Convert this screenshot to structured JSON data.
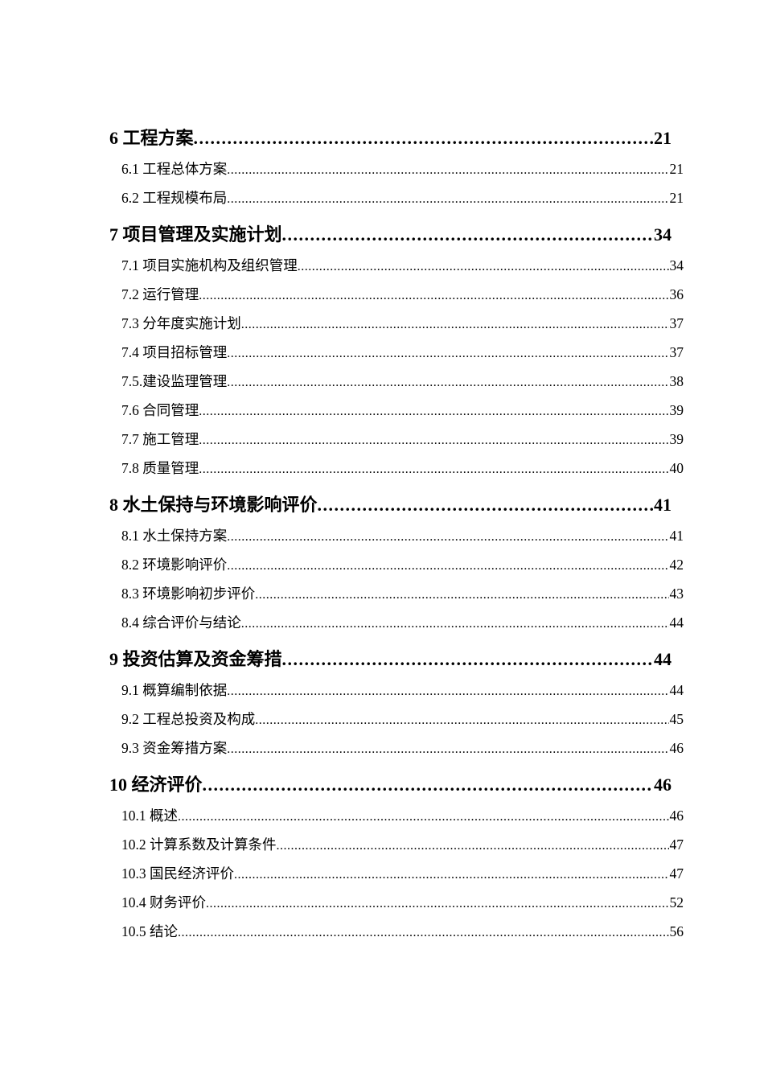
{
  "page": {
    "background_color": "#ffffff",
    "text_color": "#000000",
    "leader_char": "."
  },
  "toc": {
    "entries": [
      {
        "level": 1,
        "label": "6 工程方案",
        "page": "21"
      },
      {
        "level": 2,
        "label": "6.1 工程总体方案",
        "page": "21"
      },
      {
        "level": 2,
        "label": "6.2 工程规模布局",
        "page": "21"
      },
      {
        "level": 1,
        "label": "7 项目管理及实施计划",
        "page": "34"
      },
      {
        "level": 2,
        "label": "7.1 项目实施机构及组织管理",
        "page": "34"
      },
      {
        "level": 2,
        "label": "7.2 运行管理",
        "page": "36"
      },
      {
        "level": 2,
        "label": "7.3 分年度实施计划",
        "page": "37"
      },
      {
        "level": 2,
        "label": "7.4 项目招标管理",
        "page": "37"
      },
      {
        "level": 2,
        "label": "7.5.建设监理管理",
        "page": "38"
      },
      {
        "level": 2,
        "label": "7.6 合同管理",
        "page": "39"
      },
      {
        "level": 2,
        "label": "7.7 施工管理",
        "page": "39"
      },
      {
        "level": 2,
        "label": "7.8 质量管理",
        "page": "40"
      },
      {
        "level": 1,
        "label": "8 水土保持与环境影响评价",
        "page": "41"
      },
      {
        "level": 2,
        "label": "8.1 水土保持方案",
        "page": "41"
      },
      {
        "level": 2,
        "label": "8.2 环境影响评价",
        "page": "42"
      },
      {
        "level": 2,
        "label": "8.3 环境影响初步评价",
        "page": "43"
      },
      {
        "level": 2,
        "label": "8.4 综合评价与结论",
        "page": "44"
      },
      {
        "level": 1,
        "label": "9 投资估算及资金筹措",
        "page": "44"
      },
      {
        "level": 2,
        "label": "9.1 概算编制依据",
        "page": "44"
      },
      {
        "level": 2,
        "label": "9.2 工程总投资及构成",
        "page": "45"
      },
      {
        "level": 2,
        "label": "9.3 资金筹措方案",
        "page": "46"
      },
      {
        "level": 1,
        "label": "10 经济评价",
        "page": "46"
      },
      {
        "level": 2,
        "label": "10.1 概述",
        "page": "46"
      },
      {
        "level": 2,
        "label": "10.2 计算系数及计算条件",
        "page": "47"
      },
      {
        "level": 2,
        "label": "10.3 国民经济评价",
        "page": "47"
      },
      {
        "level": 2,
        "label": "10.4 财务评价",
        "page": "52"
      },
      {
        "level": 2,
        "label": "10.5 结论",
        "page": "56"
      }
    ]
  }
}
